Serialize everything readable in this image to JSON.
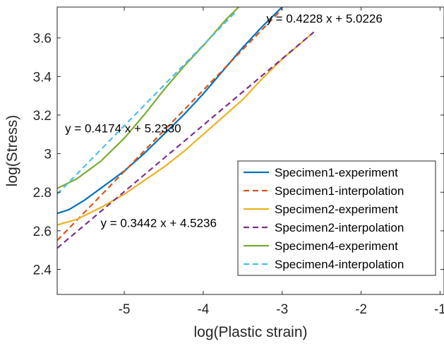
{
  "chart_data": {
    "type": "line",
    "title": "",
    "xlabel": "log(Plastic strain)",
    "ylabel": "log(Stress)",
    "xlim": [
      -5.85,
      -0.95
    ],
    "ylim": [
      2.27,
      3.76
    ],
    "x_ticks": [
      -5,
      -4,
      -3,
      -2,
      -1
    ],
    "x_tick_labels": [
      "-5",
      "-4",
      "-3",
      "-2",
      "-1"
    ],
    "y_ticks": [
      2.4,
      2.6,
      2.8,
      3.0,
      3.2,
      3.4,
      3.6
    ],
    "y_tick_labels": [
      "2.4",
      "2.6",
      "2.8",
      "3",
      "3.2",
      "3.4",
      "3.6"
    ],
    "grid": false,
    "legend_position": "bottom-right",
    "series": [
      {
        "name": "Specimen1-experiment",
        "color": "#0072BD",
        "style": "solid",
        "points": [
          [
            -5.85,
            2.69
          ],
          [
            -5.7,
            2.71
          ],
          [
            -5.5,
            2.76
          ],
          [
            -5.3,
            2.82
          ],
          [
            -5.0,
            2.91
          ],
          [
            -4.75,
            3.0
          ],
          [
            -4.5,
            3.1
          ],
          [
            -4.25,
            3.2
          ],
          [
            -4.0,
            3.31
          ],
          [
            -3.75,
            3.43
          ],
          [
            -3.5,
            3.55
          ],
          [
            -3.25,
            3.66
          ],
          [
            -3.0,
            3.76
          ]
        ]
      },
      {
        "name": "Specimen1-interpolation",
        "color": "#D95319",
        "style": "dashed",
        "points": [
          [
            -5.85,
            2.55
          ],
          [
            -3.0,
            3.75
          ]
        ]
      },
      {
        "name": "Specimen2-experiment",
        "color": "#EDB120",
        "style": "solid",
        "points": [
          [
            -5.85,
            2.63
          ],
          [
            -5.6,
            2.66
          ],
          [
            -5.3,
            2.72
          ],
          [
            -5.0,
            2.79
          ],
          [
            -4.75,
            2.86
          ],
          [
            -4.5,
            2.93
          ],
          [
            -4.25,
            3.01
          ],
          [
            -4.0,
            3.1
          ],
          [
            -3.75,
            3.19
          ],
          [
            -3.5,
            3.28
          ],
          [
            -3.25,
            3.39
          ],
          [
            -3.0,
            3.49
          ],
          [
            -2.8,
            3.56
          ],
          [
            -2.6,
            3.63
          ]
        ]
      },
      {
        "name": "Specimen2-interpolation",
        "color": "#7E2F8E",
        "style": "dashed",
        "points": [
          [
            -5.85,
            2.51
          ],
          [
            -2.6,
            3.63
          ]
        ]
      },
      {
        "name": "Specimen4-experiment",
        "color": "#77AC30",
        "style": "solid",
        "points": [
          [
            -5.85,
            2.82
          ],
          [
            -5.6,
            2.87
          ],
          [
            -5.3,
            2.96
          ],
          [
            -5.0,
            3.08
          ],
          [
            -4.75,
            3.2
          ],
          [
            -4.5,
            3.33
          ],
          [
            -4.25,
            3.45
          ],
          [
            -4.0,
            3.56
          ],
          [
            -3.85,
            3.63
          ],
          [
            -3.7,
            3.7
          ],
          [
            -3.55,
            3.76
          ]
        ]
      },
      {
        "name": "Specimen4-interpolation",
        "color": "#4DBEEE",
        "style": "dashed",
        "points": [
          [
            -5.85,
            2.79
          ],
          [
            -3.6,
            3.73
          ]
        ]
      }
    ],
    "annotations": [
      {
        "text": "y = 0.4228 x + 5.0226",
        "x": -3.2,
        "y": 3.68
      },
      {
        "text": "y = 0.4174 x + 5.2330",
        "x": -5.75,
        "y": 3.11
      },
      {
        "text": "y = 0.3442 x + 4.5236",
        "x": -5.3,
        "y": 2.62
      }
    ]
  }
}
